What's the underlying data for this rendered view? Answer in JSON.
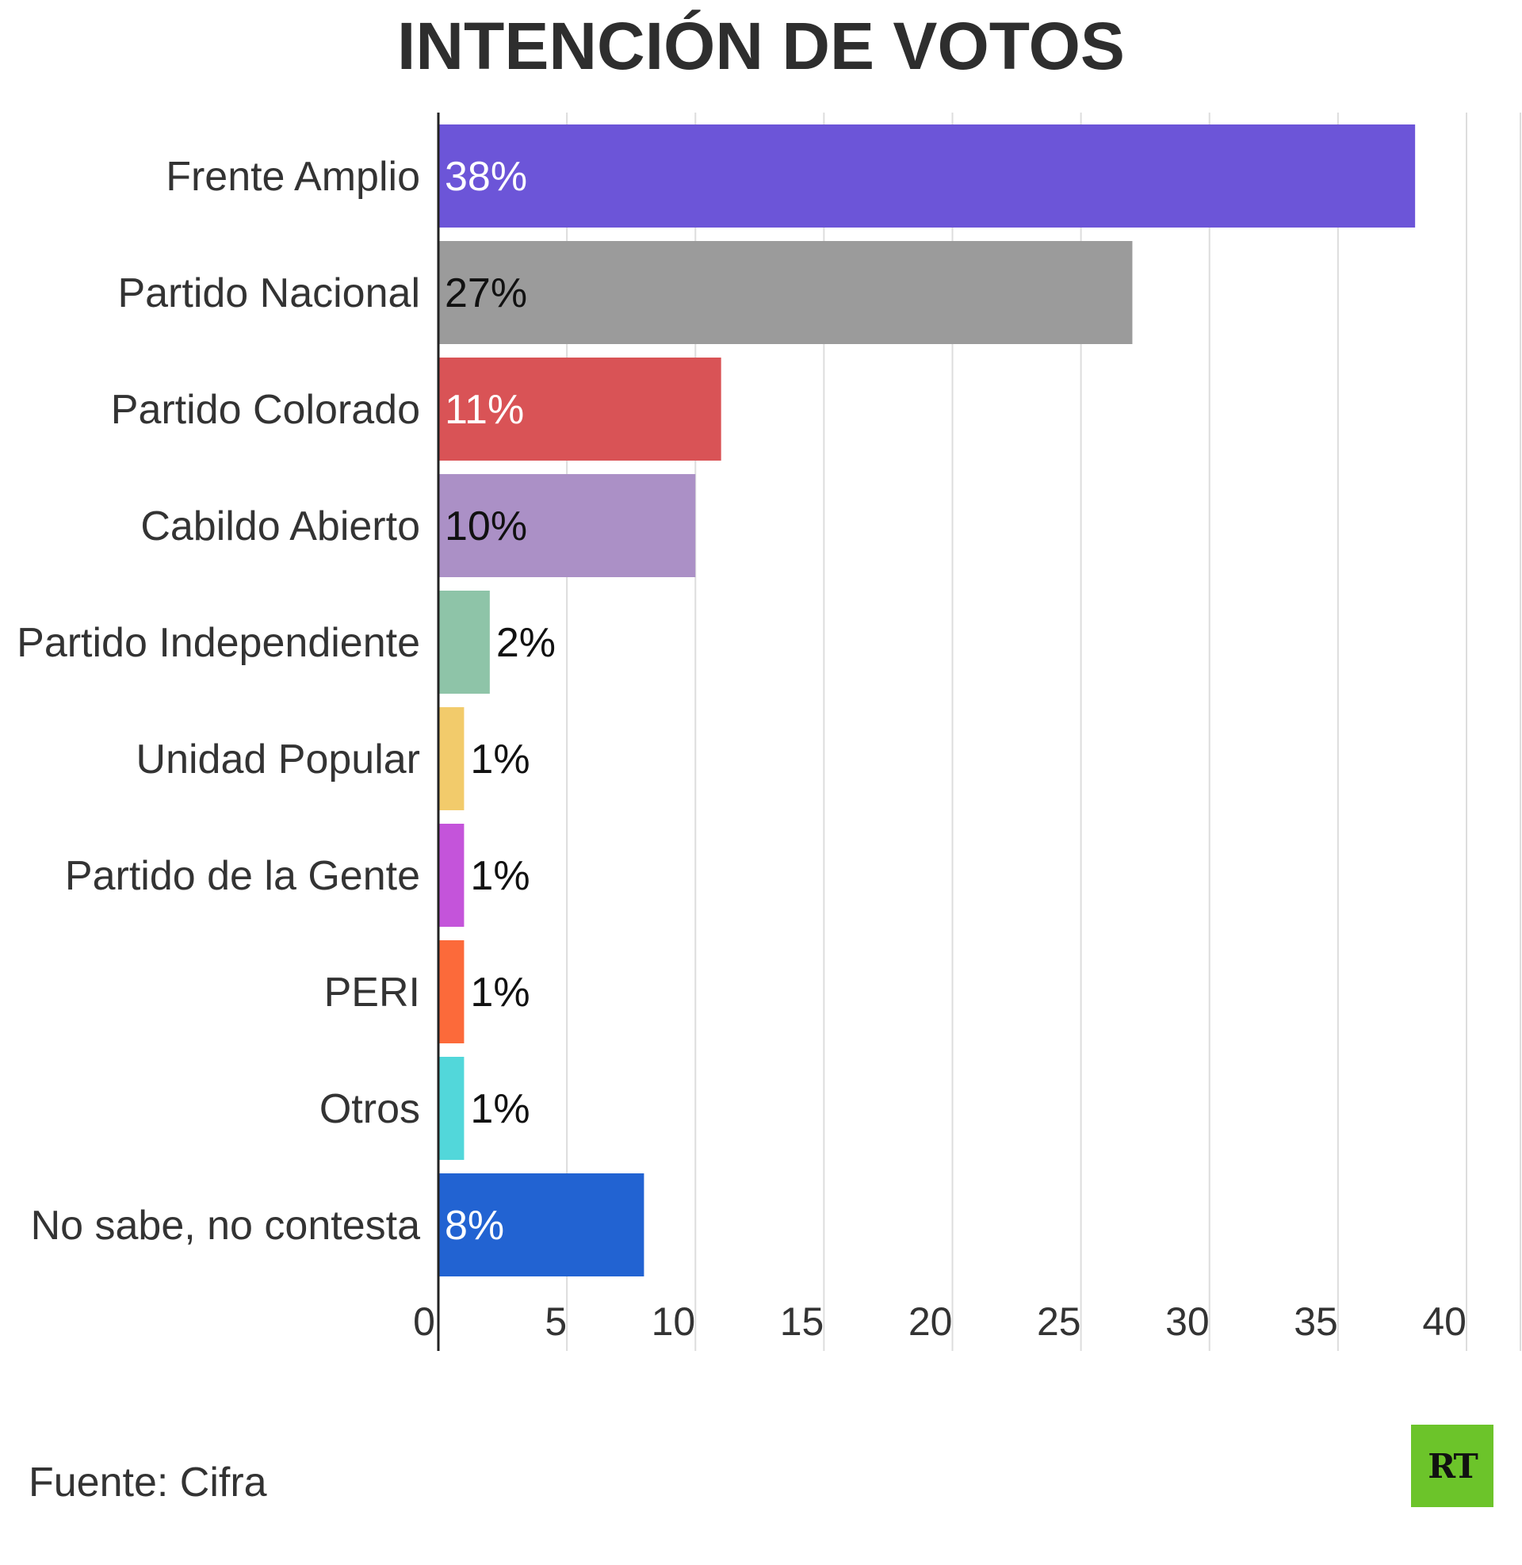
{
  "chart_data": {
    "type": "bar",
    "orientation": "horizontal",
    "title": "INTENCIÓN DE VOTOS",
    "categories": [
      "Frente Amplio",
      "Partido Nacional",
      "Partido Colorado",
      "Cabildo Abierto",
      "Partido Independiente",
      "Unidad Popular",
      "Partido de la Gente",
      "PERI",
      "Otros",
      "No sabe, no contesta"
    ],
    "values": [
      38,
      27,
      11,
      10,
      2,
      1,
      1,
      1,
      1,
      8
    ],
    "value_labels": [
      "38%",
      "27%",
      "11%",
      "10%",
      "2%",
      "1%",
      "1%",
      "1%",
      "1%",
      "8%"
    ],
    "colors": [
      "#6c55d8",
      "#9b9b9b",
      "#d95356",
      "#ab90c6",
      "#8ec4a8",
      "#f2cb6b",
      "#c454da",
      "#fc6a3a",
      "#52d7da",
      "#2263d2"
    ],
    "label_colors": [
      "#ffffff",
      "#111111",
      "#ffffff",
      "#111111",
      "#111111",
      "#111111",
      "#111111",
      "#111111",
      "#111111",
      "#ffffff"
    ],
    "xlim": [
      0,
      40
    ],
    "xticks": [
      0,
      5,
      10,
      15,
      20,
      25,
      30,
      35,
      40
    ],
    "grid": true
  },
  "source": "Fuente: Cifra",
  "logo_text": "RT"
}
